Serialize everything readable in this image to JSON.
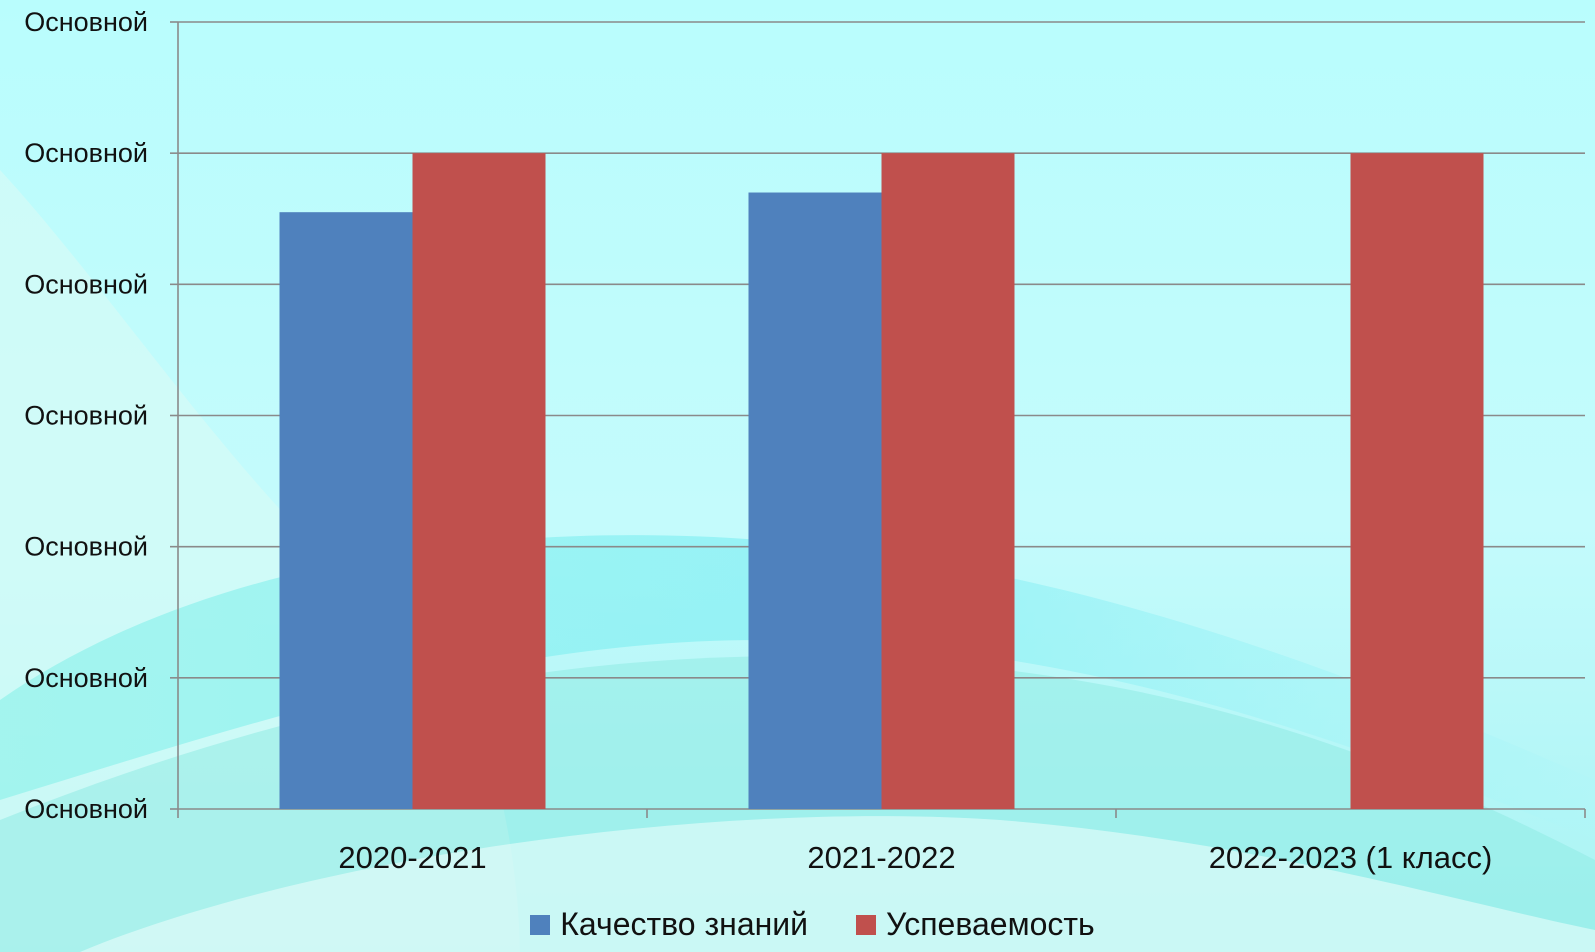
{
  "chart_data": {
    "type": "bar",
    "categories": [
      "2020-2021",
      "2021-2022",
      "2022-2023 (1 класс)"
    ],
    "series": [
      {
        "name": "Качество знаний",
        "color": "#4f81bd",
        "values": [
          91,
          94,
          null
        ]
      },
      {
        "name": "Успеваемость",
        "color": "#c0504d",
        "values": [
          100,
          100,
          100
        ]
      }
    ],
    "y_tick_labels": [
      "Основной",
      "Основной",
      "Основной",
      "Основной",
      "Основной",
      "Основной",
      "Основной"
    ],
    "ylim": [
      0,
      120
    ],
    "y_ticks": [
      0,
      20,
      40,
      60,
      80,
      100,
      120
    ],
    "grid": true,
    "legend_position": "bottom"
  }
}
